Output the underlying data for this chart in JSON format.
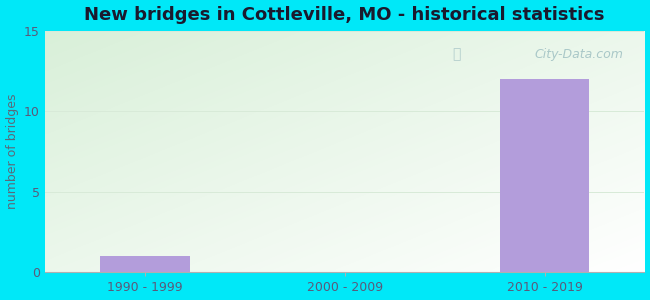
{
  "title": "New bridges in Cottleville, MO - historical statistics",
  "categories": [
    "1990 - 1999",
    "2000 - 2009",
    "2010 - 2019"
  ],
  "values": [
    1,
    0,
    12
  ],
  "bar_color": "#b39ddb",
  "bar_width": 0.45,
  "ylim": [
    0,
    15
  ],
  "yticks": [
    0,
    5,
    10,
    15
  ],
  "ylabel": "number of bridges",
  "ylabel_color": "#5a6a7a",
  "title_color": "#1a1a2e",
  "tick_label_color": "#5a5a7a",
  "background_outer": "#00e8f8",
  "grid_color": "#d8ead8",
  "watermark": "City-Data.com",
  "watermark_color": "#aac8c8",
  "title_fontsize": 13,
  "ylabel_fontsize": 9,
  "tick_fontsize": 9
}
